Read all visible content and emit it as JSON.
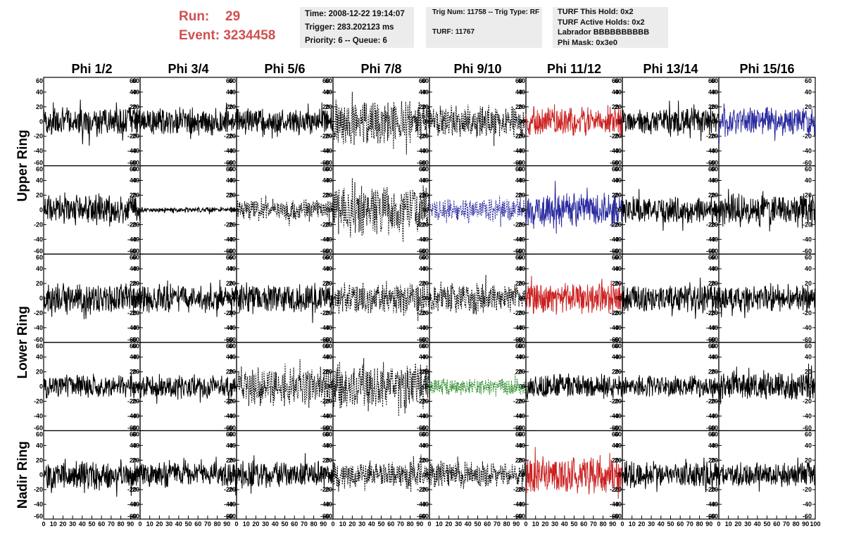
{
  "header": {
    "run_label": "Run:",
    "run_value": "29",
    "event_label": "Event:",
    "event_value": "3234458",
    "time_box": {
      "time": "Time: 2008-12-22 19:14:07",
      "trigger": "Trigger: 283.202123 ms",
      "priority": "Priority: 6 -- Queue: 6"
    },
    "trig_box": {
      "trig": "Trig Num: 11758 -- Trig Type: RF",
      "turf": "TURF: 11767"
    },
    "turf_box": {
      "this_hold": "TURF This Hold: 0x2",
      "active_holds": "TURF Active Holds: 0x2",
      "labrador": "Labrador BBBBBBBBBB",
      "phi_mask": "Phi Mask: 0x3e0"
    }
  },
  "chart_data": {
    "type": "line",
    "columns": [
      "Phi 1/2",
      "Phi 3/4",
      "Phi 5/6",
      "Phi 7/8",
      "Phi 9/10",
      "Phi 11/12",
      "Phi 13/14",
      "Phi 15/16"
    ],
    "ring_labels": [
      {
        "label": "Upper Ring",
        "rows": [
          0,
          1
        ]
      },
      {
        "label": "Lower Ring",
        "rows": [
          2,
          3
        ]
      },
      {
        "label": "Nadir Ring",
        "rows": [
          4,
          4
        ]
      }
    ],
    "xlim": [
      0,
      100
    ],
    "x_ticks": [
      0,
      10,
      20,
      30,
      40,
      50,
      60,
      70,
      80,
      90,
      100
    ],
    "ylim": [
      -60,
      60
    ],
    "y_ticks": [
      -60,
      -40,
      -20,
      0,
      20,
      40,
      60
    ],
    "colors": {
      "normal": "#000000",
      "red": "#cc2222",
      "blue": "#2a2aa0",
      "green": "#2a8a2a"
    },
    "panels": [
      [
        {
          "style": "solid",
          "color": "normal",
          "amp": 22
        },
        {
          "style": "solid",
          "color": "normal",
          "amp": 20
        },
        {
          "style": "solid",
          "color": "normal",
          "amp": 20
        },
        {
          "style": "dashed",
          "color": "normal",
          "amp": 34
        },
        {
          "style": "dashed",
          "color": "normal",
          "amp": 24
        },
        {
          "style": "solid",
          "color": "red",
          "amp": 20
        },
        {
          "style": "solid",
          "color": "normal",
          "amp": 20
        },
        {
          "style": "solid",
          "color": "blue",
          "amp": 22
        }
      ],
      [
        {
          "style": "solid",
          "color": "normal",
          "amp": 22
        },
        {
          "style": "solid",
          "color": "normal",
          "amp": 4
        },
        {
          "style": "dashed",
          "color": "normal",
          "amp": 16
        },
        {
          "style": "dashed",
          "color": "normal",
          "amp": 38
        },
        {
          "style": "dashed",
          "color": "blue",
          "amp": 17
        },
        {
          "style": "solid",
          "color": "blue",
          "amp": 26
        },
        {
          "style": "solid",
          "color": "normal",
          "amp": 20
        },
        {
          "style": "solid",
          "color": "normal",
          "amp": 24
        }
      ],
      [
        {
          "style": "solid",
          "color": "normal",
          "amp": 22
        },
        {
          "style": "solid",
          "color": "normal",
          "amp": 20
        },
        {
          "style": "solid",
          "color": "normal",
          "amp": 22
        },
        {
          "style": "dashed",
          "color": "normal",
          "amp": 22
        },
        {
          "style": "dashed",
          "color": "normal",
          "amp": 22
        },
        {
          "style": "solid",
          "color": "red",
          "amp": 24
        },
        {
          "style": "solid",
          "color": "normal",
          "amp": 22
        },
        {
          "style": "solid",
          "color": "normal",
          "amp": 20
        }
      ],
      [
        {
          "style": "solid",
          "color": "normal",
          "amp": 18
        },
        {
          "style": "solid",
          "color": "normal",
          "amp": 18
        },
        {
          "style": "dashed",
          "color": "normal",
          "amp": 28
        },
        {
          "style": "dashed",
          "color": "normal",
          "amp": 36
        },
        {
          "style": "dashed",
          "color": "green",
          "amp": 12
        },
        {
          "style": "solid",
          "color": "normal",
          "amp": 18
        },
        {
          "style": "solid",
          "color": "normal",
          "amp": 16
        },
        {
          "style": "solid",
          "color": "normal",
          "amp": 22
        }
      ],
      [
        {
          "style": "solid",
          "color": "normal",
          "amp": 22
        },
        {
          "style": "solid",
          "color": "normal",
          "amp": 18
        },
        {
          "style": "solid",
          "color": "normal",
          "amp": 20
        },
        {
          "style": "dashed",
          "color": "normal",
          "amp": 20
        },
        {
          "style": "dashed",
          "color": "normal",
          "amp": 20
        },
        {
          "style": "solid",
          "color": "red",
          "amp": 28
        },
        {
          "style": "solid",
          "color": "normal",
          "amp": 20
        },
        {
          "style": "solid",
          "color": "normal",
          "amp": 18
        }
      ]
    ]
  }
}
